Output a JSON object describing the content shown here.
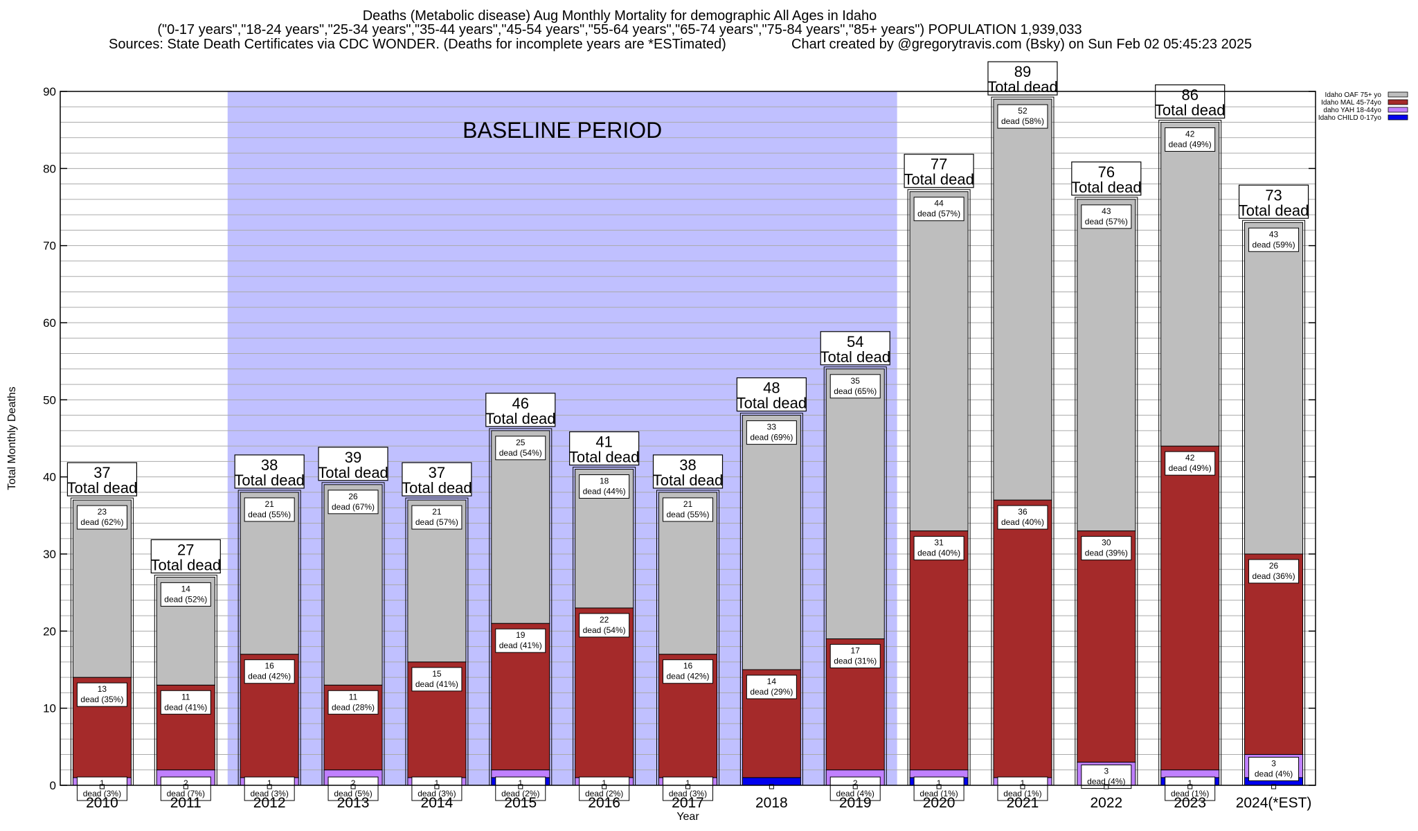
{
  "title": {
    "line1": "Deaths (Metabolic disease) Aug Monthly Mortality for demographic All Ages in Idaho",
    "line2": "(\"0-17 years\",\"18-24 years\",\"25-34 years\",\"35-44 years\",\"45-54 years\",\"55-64 years\",\"65-74 years\",\"75-84 years\",\"85+ years\") POPULATION 1,939,033",
    "sources": "Sources: State Death Certificates via CDC WONDER. (Deaths for incomplete years are *ESTimated)",
    "credit": "Chart created by @gregorytravis.com (Bsky) on Sun Feb 02 05:45:23 2025"
  },
  "colors": {
    "oaf": "#bebebe",
    "mal": "#a52a2a",
    "yah": "#c080ff",
    "child": "#0000ee",
    "baseline": "#c0c0ff"
  },
  "chart_data": {
    "type": "bar",
    "stacked": true,
    "xlabel": "Year",
    "ylabel": "Total Monthly Deaths",
    "ylim": [
      0,
      90
    ],
    "yticks": [
      0,
      10,
      20,
      30,
      40,
      50,
      60,
      70,
      80,
      90
    ],
    "grid": true,
    "legend_position": "top-right",
    "baseline": {
      "label": "BASELINE PERIOD",
      "from": "2012",
      "to": "2019"
    },
    "total_suffix": "Total dead",
    "categories": [
      "2010",
      "2011",
      "2012",
      "2013",
      "2014",
      "2015",
      "2016",
      "2017",
      "2018",
      "2019",
      "2020",
      "2021",
      "2022",
      "2023",
      "2024(*EST)"
    ],
    "series": [
      {
        "name": "Idaho CHILD 0-17yo",
        "key": "child",
        "values": [
          0,
          0,
          0,
          0,
          0,
          1,
          0,
          0,
          1,
          0,
          1,
          0,
          0,
          1,
          1
        ]
      },
      {
        "name": "daho YAH 18-44yo",
        "key": "yah",
        "values": [
          1,
          2,
          1,
          2,
          1,
          1,
          1,
          1,
          0,
          2,
          1,
          1,
          3,
          1,
          3
        ]
      },
      {
        "name": "Idaho MAL 45-74yo",
        "key": "mal",
        "values": [
          13,
          11,
          16,
          11,
          15,
          19,
          22,
          16,
          14,
          17,
          31,
          36,
          30,
          42,
          26
        ]
      },
      {
        "name": "Idaho OAF 75+ yo",
        "key": "oaf",
        "values": [
          23,
          14,
          21,
          26,
          21,
          25,
          18,
          21,
          33,
          35,
          44,
          52,
          43,
          42,
          43
        ]
      }
    ],
    "totals": [
      37,
      27,
      38,
      39,
      37,
      46,
      41,
      38,
      48,
      54,
      77,
      89,
      76,
      86,
      73
    ],
    "segment_labels": {
      "oaf": [
        "dead (62%)",
        "dead (52%)",
        "dead (55%)",
        "dead (67%)",
        "dead (57%)",
        "dead (54%)",
        "dead (44%)",
        "dead (55%)",
        "dead (69%)",
        "dead (65%)",
        "dead (57%)",
        "dead (58%)",
        "dead (57%)",
        "dead (49%)",
        "dead (59%)"
      ],
      "mal": [
        "dead (35%)",
        "dead (41%)",
        "dead (42%)",
        "dead (28%)",
        "dead (41%)",
        "dead (41%)",
        "dead (54%)",
        "dead (42%)",
        "dead (29%)",
        "dead (31%)",
        "dead (40%)",
        "dead (40%)",
        "dead (39%)",
        "dead (49%)",
        "dead (36%)"
      ],
      "yah": [
        "dead (3%)",
        "dead (7%)",
        "dead (3%)",
        "dead (5%)",
        "dead (3%)",
        "dead (2%)",
        "dead (2%)",
        "dead (3%)",
        "",
        "dead (4%)",
        "dead (1%)",
        "dead (1%)",
        "dead (4%)",
        "dead (1%)",
        "dead (4%)"
      ],
      "yah_show": [
        true,
        true,
        true,
        true,
        true,
        true,
        true,
        true,
        false,
        true,
        true,
        true,
        true,
        true,
        true
      ]
    },
    "legend_order": [
      "oaf",
      "mal",
      "yah",
      "child"
    ]
  }
}
